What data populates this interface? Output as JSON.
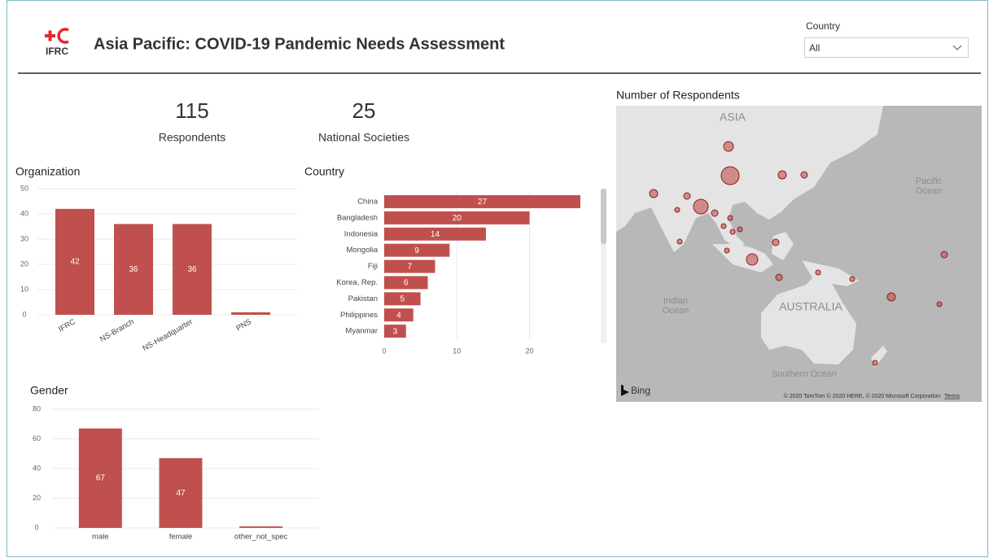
{
  "header": {
    "logo": "IFRC",
    "title": "Asia Pacific: COVID-19 Pandemic Needs Assessment",
    "slicer": {
      "label": "Country",
      "value": "All"
    }
  },
  "cards": [
    {
      "value": "115",
      "label": "Respondents"
    },
    {
      "value": "25",
      "label": "National Societies"
    }
  ],
  "chart_data": [
    {
      "type": "bar",
      "title": "Organization",
      "categories": [
        "IFRC",
        "NS-Branch",
        "NS-Headquarter",
        "PNS"
      ],
      "values": [
        42,
        36,
        36,
        1
      ],
      "color": "#c0504d",
      "ylim": [
        0,
        50
      ],
      "yticks": [
        0,
        10,
        20,
        30,
        40,
        50
      ],
      "grid": true
    },
    {
      "type": "bar",
      "orientation": "horizontal",
      "title": "Country",
      "categories": [
        "China",
        "Bangladesh",
        "Indonesia",
        "Mongolia",
        "Fiji",
        "Korea, Rep.",
        "Pakistan",
        "Philippines",
        "Myanmar"
      ],
      "values": [
        27,
        20,
        14,
        9,
        7,
        6,
        5,
        4,
        3
      ],
      "color": "#c0504d",
      "xlim": [
        0,
        27
      ],
      "xticks": [
        0,
        10,
        20
      ],
      "grid": true
    },
    {
      "type": "bar",
      "title": "Gender",
      "categories": [
        "male",
        "female",
        "other_not_spec"
      ],
      "values": [
        67,
        47,
        1
      ],
      "color": "#c0504d",
      "ylim": [
        0,
        80
      ],
      "yticks": [
        0,
        20,
        40,
        60,
        80
      ],
      "grid": true
    }
  ],
  "map": {
    "title": "Number of Respondents",
    "labels": [
      "ASIA",
      [
        "Pacific",
        "Ocean"
      ],
      [
        "Indian",
        "Ocean"
      ],
      "AUSTRALIA",
      "Southern Ocean"
    ],
    "provider": "Bing",
    "copyright": "© 2020 TomTom © 2020 HERE, © 2020 Microsoft Corporation",
    "terms": "Terms"
  }
}
